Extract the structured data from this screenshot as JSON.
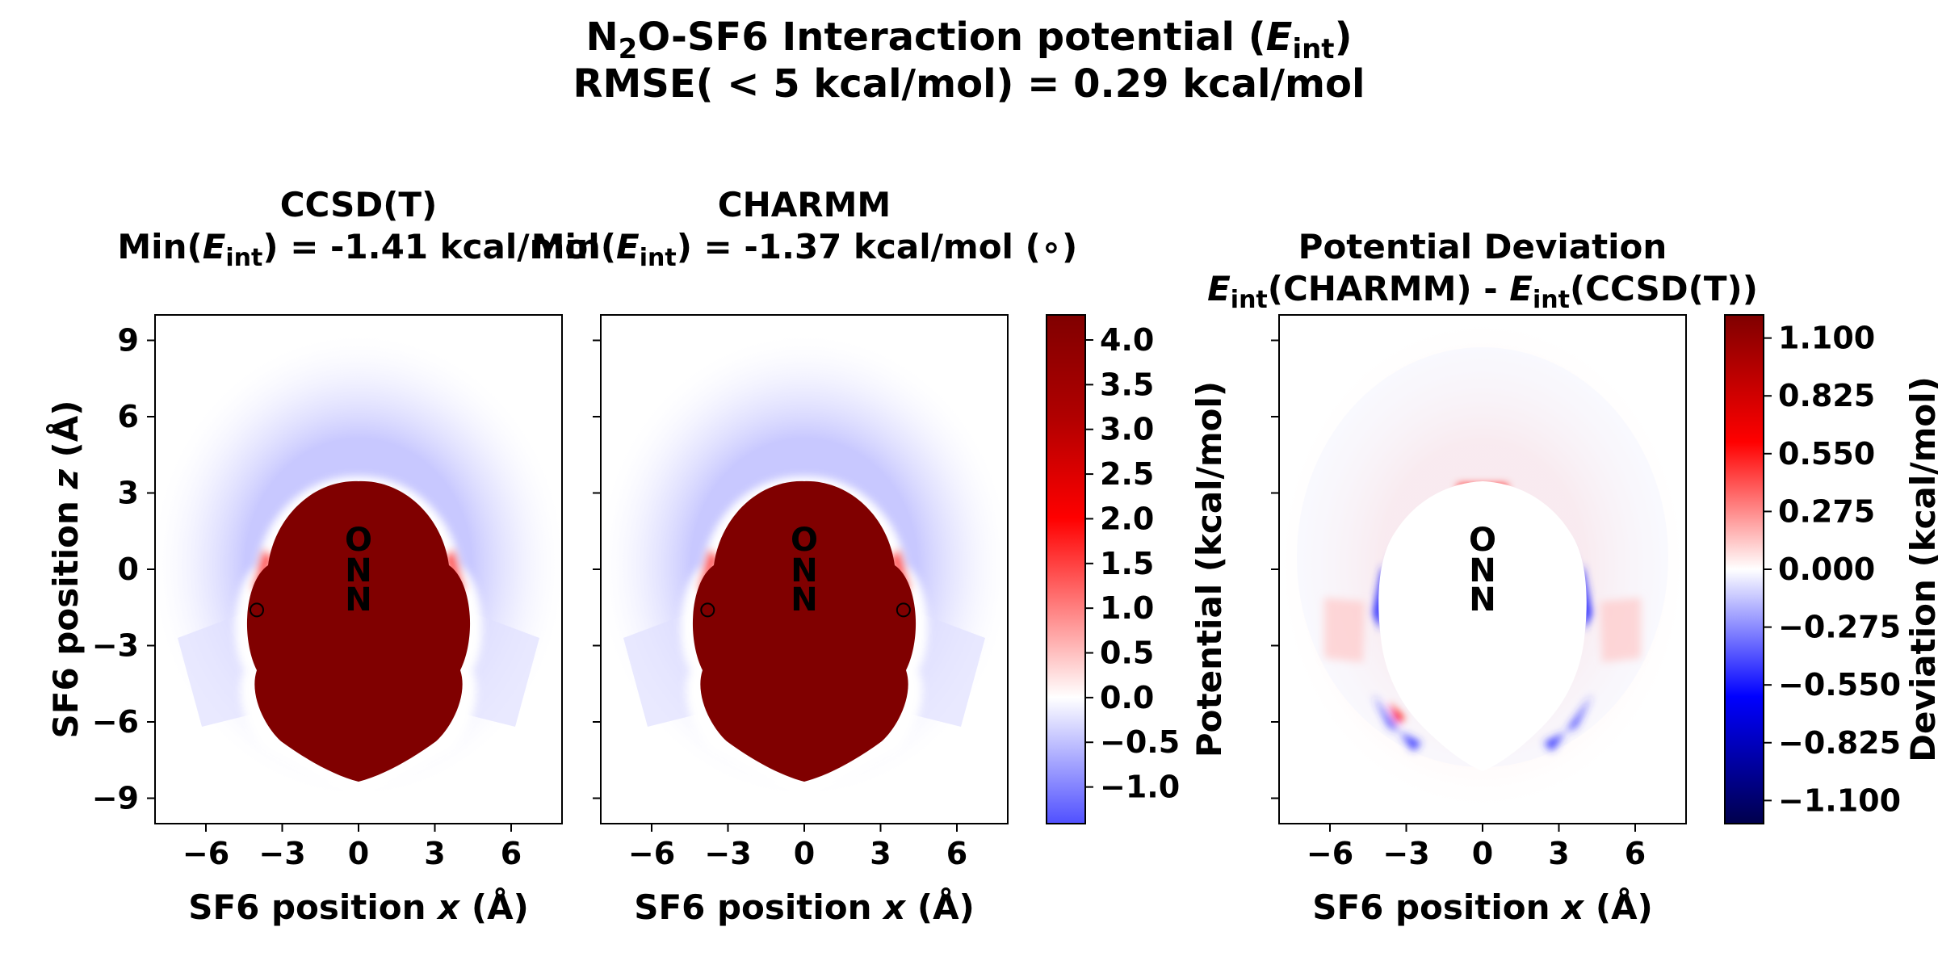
{
  "figure": {
    "title_line1": {
      "pre": "N",
      "sub": "2",
      "mid": "O-SF6 Interaction potential (",
      "var": "E",
      "varsub": "int",
      "post": ")"
    },
    "title_line2": "RMSE( < 5 kcal/mol) = 0.29 kcal/mol"
  },
  "panels": [
    {
      "title": "CCSD(T)",
      "subtitle": {
        "pre": "Min(",
        "var": "E",
        "varsub": "int",
        "post": ") = -1.41 kcal/mol"
      },
      "xlabel": {
        "pre": "SF6 position ",
        "var": "x",
        "post": " (Å)"
      },
      "ylabel": {
        "pre": "SF6 position ",
        "var": "z",
        "post": " (Å)"
      }
    },
    {
      "title": "CHARMM",
      "subtitle": {
        "pre": "Min(",
        "var": "E",
        "varsub": "int",
        "post": ") = -1.37 kcal/mol (∘)"
      },
      "xlabel": {
        "pre": "SF6 position ",
        "var": "x",
        "post": " (Å)"
      }
    },
    {
      "title": "Potential Deviation",
      "subtitle": {
        "var1": "E",
        "varsub1": "int",
        "mid": "(CHARMM) - ",
        "var2": "E",
        "varsub2": "int",
        "post": "(CCSD(T))"
      },
      "xlabel": {
        "pre": "SF6 position ",
        "var": "x",
        "post": " (Å)"
      }
    }
  ],
  "colorbars": [
    {
      "label": "Potential (kcal/mol)",
      "ticks": [
        "4.0",
        "3.5",
        "3.0",
        "2.5",
        "2.0",
        "1.5",
        "1.0",
        "0.5",
        "0.0",
        "−0.5",
        "−1.0"
      ],
      "values": [
        4.0,
        3.5,
        3.0,
        2.5,
        2.0,
        1.5,
        1.0,
        0.5,
        0.0,
        -0.5,
        -1.0
      ],
      "range": [
        -1.41,
        4.28
      ],
      "cmap": "bwr"
    },
    {
      "label": "Deviation (kcal/mol)",
      "ticks": [
        "1.100",
        "0.825",
        "0.550",
        "0.275",
        "0.000",
        "−0.275",
        "−0.550",
        "−0.825",
        "−1.100"
      ],
      "values": [
        1.1,
        0.825,
        0.55,
        0.275,
        0.0,
        -0.275,
        -0.55,
        -0.825,
        -1.1
      ],
      "range": [
        -1.21,
        1.21
      ],
      "cmap": "seismic"
    }
  ],
  "molecule_atoms": [
    {
      "label": "O",
      "x": 0,
      "z": 1.2
    },
    {
      "label": "N",
      "x": 0,
      "z": 0.0
    },
    {
      "label": "N",
      "x": 0,
      "z": -1.15
    }
  ],
  "chart_data": [
    {
      "type": "heatmap",
      "title": "CCSD(T)",
      "xlabel": "SF6 position x (Å)",
      "ylabel": "SF6 position z (Å)",
      "xlim": [
        -8,
        8
      ],
      "ylim": [
        -10,
        10
      ],
      "xticks": [
        -6,
        -3,
        0,
        3,
        6
      ],
      "yticks": [
        -9,
        -6,
        -3,
        0,
        3,
        6,
        9
      ],
      "zlabel": "Potential (kcal/mol)",
      "zrange": [
        -1.41,
        4.28
      ],
      "minimum": {
        "value": -1.41,
        "points": [
          {
            "x": -4.0,
            "z": -1.6
          }
        ]
      }
    },
    {
      "type": "heatmap",
      "title": "CHARMM",
      "xlabel": "SF6 position x (Å)",
      "xlim": [
        -8,
        8
      ],
      "ylim": [
        -10,
        10
      ],
      "xticks": [
        -6,
        -3,
        0,
        3,
        6
      ],
      "zlabel": "Potential (kcal/mol)",
      "zrange": [
        -1.41,
        4.28
      ],
      "minimum": {
        "value": -1.37,
        "points": [
          {
            "x": -3.8,
            "z": -1.6
          },
          {
            "x": 3.9,
            "z": -1.6
          }
        ]
      }
    },
    {
      "type": "heatmap",
      "title": "Potential Deviation",
      "xlabel": "SF6 position x (Å)",
      "xlim": [
        -8,
        8
      ],
      "ylim": [
        -10,
        10
      ],
      "xticks": [
        -6,
        -3,
        0,
        3,
        6
      ],
      "zlabel": "Deviation (kcal/mol)",
      "zrange": [
        -1.21,
        1.21
      ],
      "rmse": 0.29
    }
  ]
}
